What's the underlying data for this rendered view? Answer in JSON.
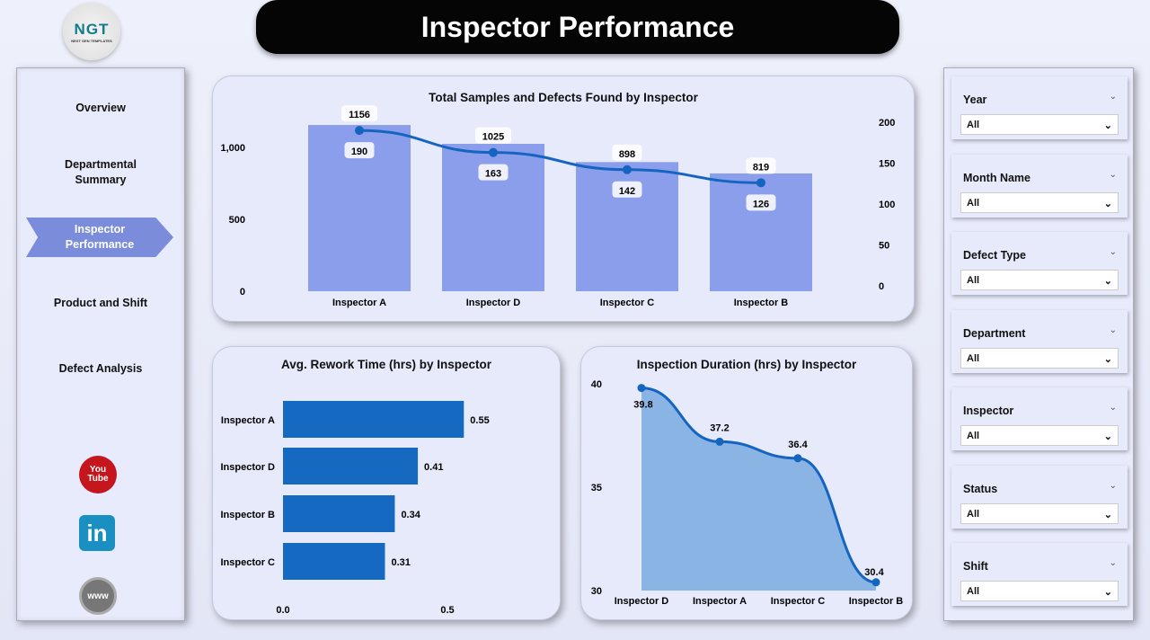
{
  "header": {
    "title": "Inspector Performance",
    "logo_text": "NGT",
    "logo_sub": "NEXT GEN TEMPLATES"
  },
  "sidebar": {
    "items": [
      {
        "label": "Overview"
      },
      {
        "label": "Departmental Summary"
      },
      {
        "label": "Inspector Performance",
        "active": true
      },
      {
        "label": "Product and Shift"
      },
      {
        "label": "Defect Analysis"
      }
    ],
    "social": {
      "youtube": "You Tube",
      "linkedin": "in",
      "web": "www"
    }
  },
  "slicers": [
    {
      "label": "Year",
      "value": "All"
    },
    {
      "label": "Month Name",
      "value": "All"
    },
    {
      "label": "Defect Type",
      "value": "All"
    },
    {
      "label": "Department",
      "value": "All"
    },
    {
      "label": "Inspector",
      "value": "All"
    },
    {
      "label": "Status",
      "value": "All"
    },
    {
      "label": "Shift",
      "value": "All"
    }
  ],
  "colors": {
    "bar": "#8a9eec",
    "line": "#1565c0",
    "hbar": "#1569c1",
    "area": "#8ab4e4"
  },
  "chart_data": [
    {
      "type": "bar+line",
      "title": "Total Samples and Defects Found by Inspector",
      "categories": [
        "Inspector A",
        "Inspector D",
        "Inspector C",
        "Inspector B"
      ],
      "series": [
        {
          "name": "Total Samples",
          "axis": "left",
          "values": [
            1156,
            1025,
            898,
            819
          ]
        },
        {
          "name": "Defects Found",
          "axis": "right",
          "values": [
            190,
            163,
            142,
            126
          ]
        }
      ],
      "y_left": {
        "ylim": [
          0,
          1150
        ],
        "ticks": [
          "0",
          "500",
          "1,000"
        ],
        "tick_values": [
          0,
          500,
          1000
        ]
      },
      "y_right": {
        "ylim": [
          0,
          200
        ],
        "ticks": [
          "0",
          "50",
          "100",
          "150",
          "200"
        ],
        "tick_values": [
          0,
          50,
          100,
          150,
          200
        ]
      }
    },
    {
      "type": "bar",
      "orientation": "horizontal",
      "title": "Avg. Rework Time (hrs) by Inspector",
      "categories": [
        "Inspector A",
        "Inspector D",
        "Inspector B",
        "Inspector C"
      ],
      "values": [
        0.55,
        0.41,
        0.34,
        0.31
      ],
      "xlim": [
        0,
        0.6
      ],
      "ticks": [
        "0.0",
        "0.5"
      ],
      "tick_values": [
        0,
        0.5
      ]
    },
    {
      "type": "area",
      "title": "Inspection Duration (hrs) by Inspector",
      "categories": [
        "Inspector D",
        "Inspector A",
        "Inspector C",
        "Inspector B"
      ],
      "values": [
        39.8,
        37.2,
        36.4,
        30.4
      ],
      "ylim": [
        30,
        40
      ],
      "ticks": [
        "30",
        "35",
        "40"
      ],
      "tick_values": [
        30,
        35,
        40
      ]
    }
  ]
}
